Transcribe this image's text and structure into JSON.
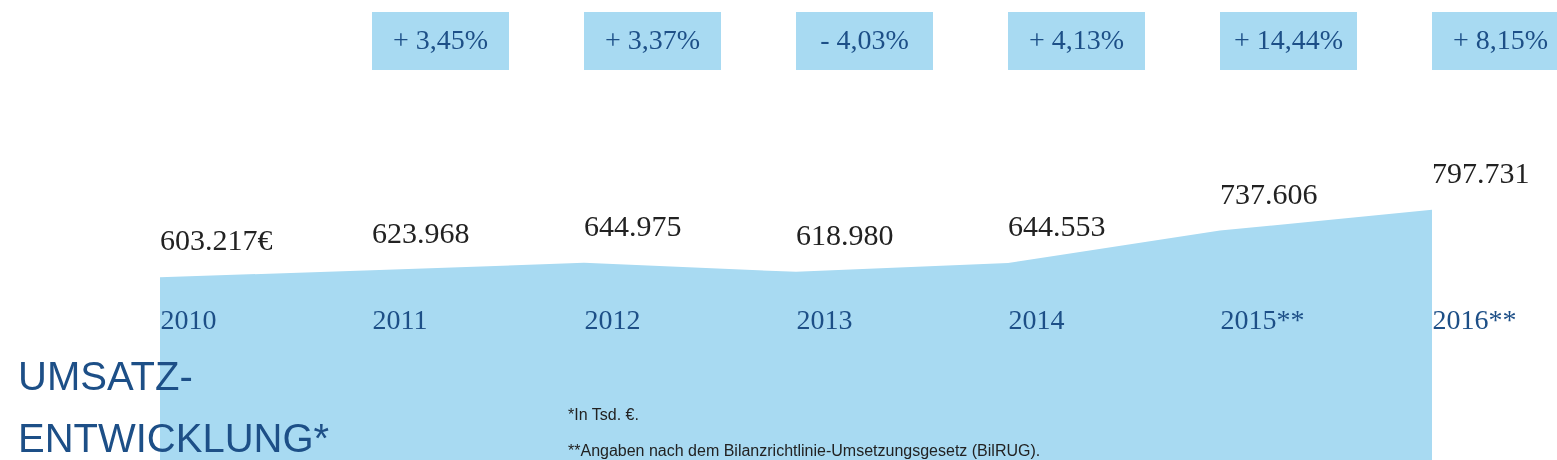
{
  "chart_data": {
    "type": "area",
    "title": "UMSATZ-ENTWICKLUNG*",
    "categories": [
      "2010",
      "2011",
      "2012",
      "2013",
      "2014",
      "2015**",
      "2016**"
    ],
    "series": [
      {
        "color": "#a8daf2",
        "values": [
          603217,
          623968,
          644975,
          618980,
          644553,
          737606,
          797731
        ],
        "value_labels": [
          "603.217€",
          "623.968",
          "644.975",
          "618.980",
          "644.553",
          "737.606",
          "797.731"
        ]
      }
    ],
    "annotations": [
      "+ 3,45%",
      "+ 3,37%",
      "- 4,03%",
      "+ 4,13%",
      "+ 14,44%",
      "+ 8,15%",
      "*In Tsd. €.",
      "**Angaben nach dem Bilanzrichtlinie-Umsetzungsgesetz (BilRUG)."
    ]
  }
}
